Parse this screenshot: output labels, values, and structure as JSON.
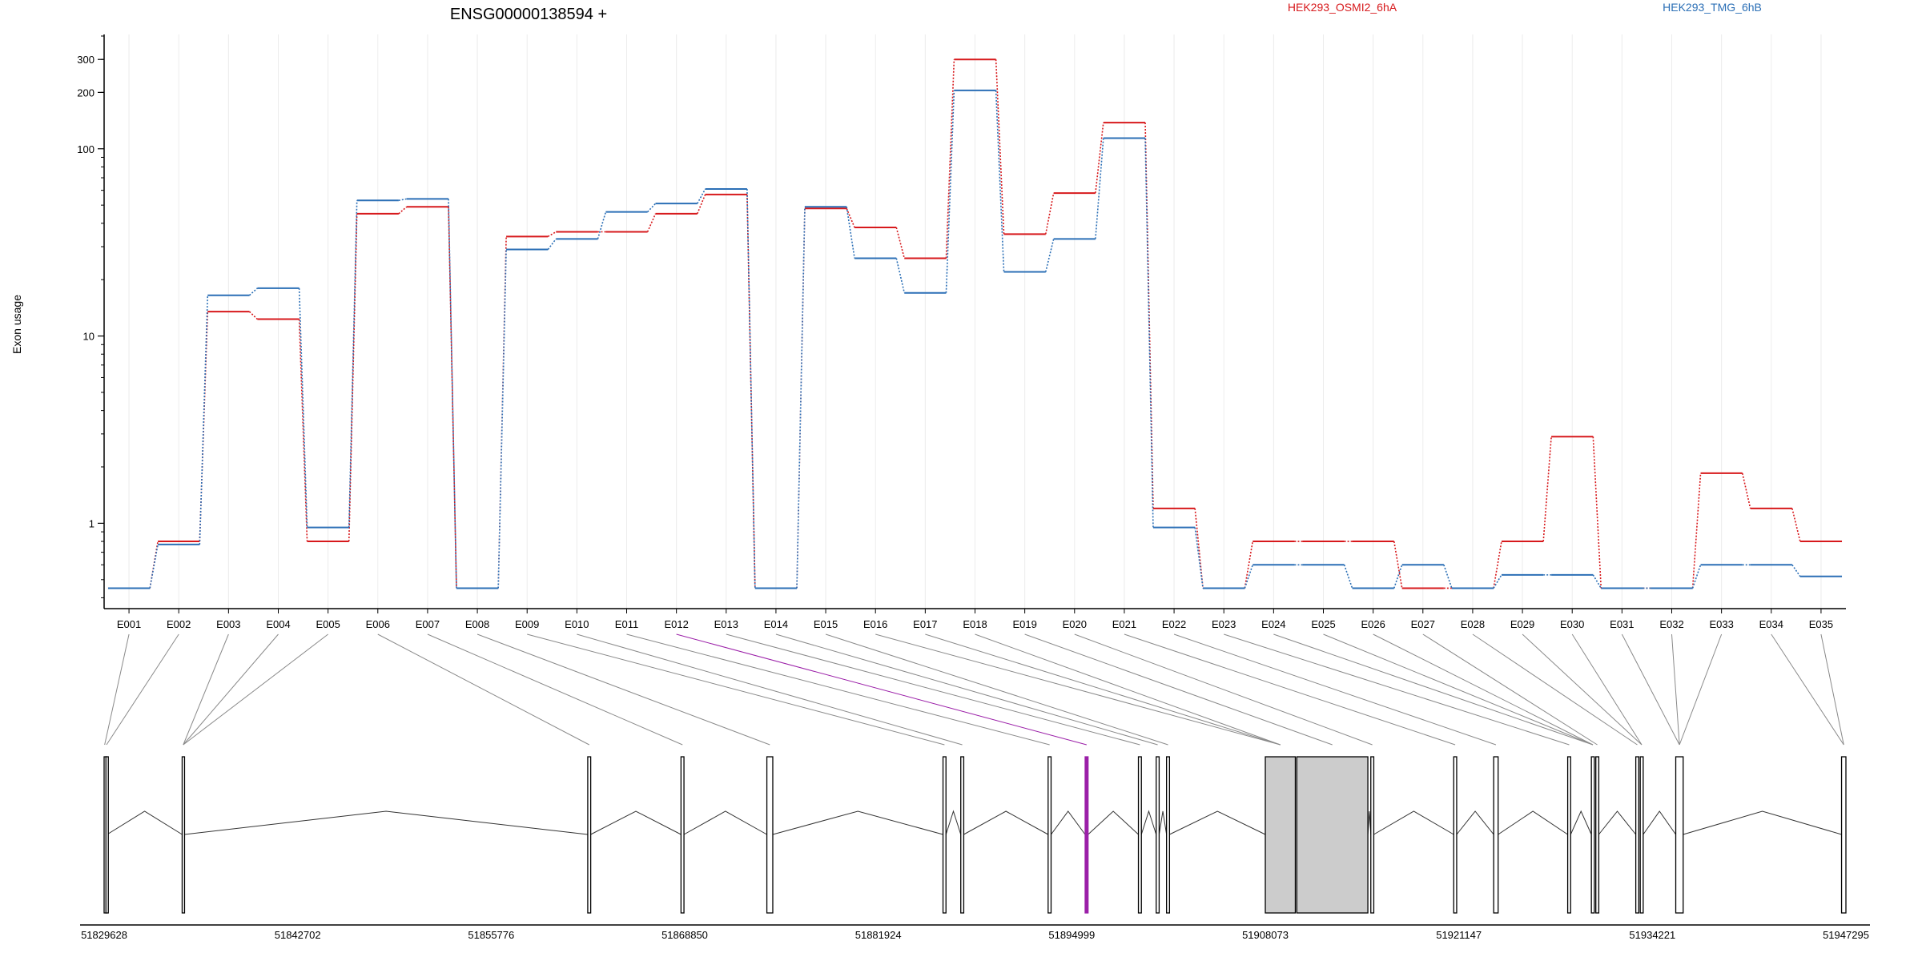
{
  "chart_data": {
    "type": "line",
    "title": "ENSG00000138594 +",
    "ylabel": "Exon usage",
    "yscale": "log",
    "ylim": [
      0.35,
      400
    ],
    "yticks": [
      1,
      10,
      100,
      200,
      300
    ],
    "ytick_labels": [
      "1",
      "10",
      "100",
      "200",
      "300"
    ],
    "grid": true,
    "legend": "top",
    "colors": {
      "HEK293_OSMI2_6hA": "#d7191c",
      "HEK293_TMG_6hB": "#2b6fb6"
    },
    "categories": [
      "E001",
      "E002",
      "E003",
      "E004",
      "E005",
      "E006",
      "E007",
      "E008",
      "E009",
      "E010",
      "E011",
      "E012",
      "E013",
      "E014",
      "E015",
      "E016",
      "E017",
      "E018",
      "E019",
      "E020",
      "E021",
      "E022",
      "E023",
      "E024",
      "E025",
      "E026",
      "E027",
      "E028",
      "E029",
      "E030",
      "E031",
      "E032",
      "E033",
      "E034",
      "E035"
    ],
    "series": [
      {
        "name": "HEK293_OSMI2_6hA",
        "color": "#d7191c",
        "values": [
          0.45,
          0.8,
          13.5,
          12.3,
          0.8,
          45,
          49,
          0.45,
          34,
          36,
          36,
          45,
          57,
          0.45,
          48,
          38,
          26,
          300,
          35,
          58,
          138,
          1.2,
          0.45,
          0.8,
          0.8,
          0.8,
          0.45,
          0.45,
          0.8,
          2.9,
          0.45,
          0.45,
          1.85,
          1.2,
          0.8
        ]
      },
      {
        "name": "HEK293_TMG_6hB",
        "color": "#2b6fb6",
        "values": [
          0.45,
          0.77,
          16.5,
          18,
          0.95,
          53,
          54,
          0.45,
          29,
          33,
          46,
          51,
          61,
          0.45,
          49,
          26,
          17,
          205,
          22,
          33,
          114,
          0.95,
          0.45,
          0.6,
          0.6,
          0.45,
          0.6,
          0.45,
          0.53,
          0.53,
          0.45,
          0.45,
          0.6,
          0.6,
          0.52
        ]
      }
    ],
    "gene_model": {
      "coord_start": 51829628,
      "coord_end": 51947295,
      "coord_ticks": [
        51829628,
        51842702,
        51855776,
        51868850,
        51881924,
        51894999,
        51908073,
        51921147,
        51934221,
        51947295
      ],
      "highlight_exon": "E012",
      "highlight_color": "#9b1fa8",
      "exons": [
        [
          51829628,
          51829700
        ],
        [
          51829750,
          51829830
        ],
        [
          51834900,
          51835050
        ],
        [
          51862300,
          51862500
        ],
        [
          51868600,
          51868800
        ],
        [
          51874400,
          51874800
        ],
        [
          51886300,
          51886500
        ],
        [
          51887500,
          51887700
        ],
        [
          51893400,
          51893600
        ],
        [
          51895900,
          51896100
        ],
        [
          51899500,
          51899700
        ],
        [
          51900700,
          51900900
        ],
        [
          51901400,
          51901600
        ],
        [
          51908073,
          51910100
        ],
        [
          51910200,
          51915000
        ],
        [
          51915200,
          51915400
        ],
        [
          51920800,
          51921000
        ],
        [
          51923500,
          51923800
        ],
        [
          51928500,
          51928700
        ],
        [
          51930100,
          51930300
        ],
        [
          51930400,
          51930600
        ],
        [
          51933100,
          51933300
        ],
        [
          51933400,
          51933600
        ],
        [
          51935800,
          51936300
        ],
        [
          51947000,
          51947295
        ]
      ],
      "filled_exons": [
        13,
        14
      ],
      "exon_map": [
        0,
        1,
        2,
        2,
        2,
        3,
        4,
        5,
        6,
        7,
        8,
        9,
        10,
        11,
        12,
        13,
        13,
        13,
        14,
        15,
        16,
        17,
        18,
        19,
        19,
        19,
        20,
        21,
        22,
        22,
        23,
        23,
        23,
        24,
        24
      ]
    }
  }
}
